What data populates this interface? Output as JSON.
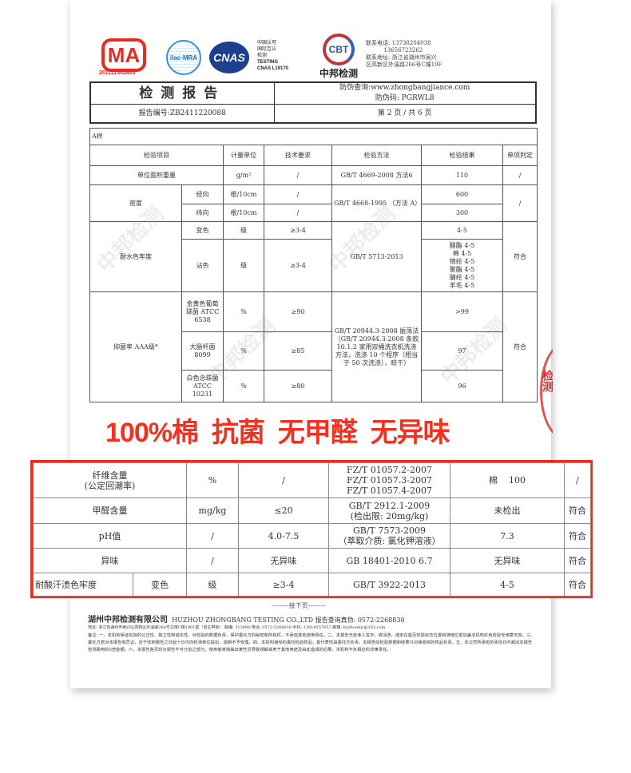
{
  "logos": {
    "cma_text": "MA",
    "cma_no": "201111342803",
    "ilac": "ilac-MRA",
    "cnas": "CNAS",
    "cnas_lines": [
      "中国认可",
      "国际互认",
      "检测",
      "TESTING",
      "CNAS L19170"
    ],
    "cbt": "CBT",
    "cbt_name": "中邦检测"
  },
  "contact": "联系电话: 13738204038\n          13656723262\n联系地址: 浙江省湖州市吴兴\n区高新区外溪路266号C幢19F",
  "header": {
    "title": "检测报告",
    "query": "防伪查询:www.zhongbangjiance.com",
    "code": "防伪码: PGRWL8",
    "report_no": "报告编号:ZB2411220088",
    "page": "第 2 页 / 共 6 页"
  },
  "table": {
    "sample": "A样",
    "columns": [
      "检验项目",
      "计量单位",
      "技术要求",
      "检验方法",
      "检验结果",
      "单项判定"
    ],
    "rows": {
      "weight": {
        "item": "单位面积重量",
        "unit": "g/m²",
        "req": "/",
        "method": "GB/T 4669-2008 方法6",
        "result": "110",
        "verdict": "/"
      },
      "density": {
        "item": "密度",
        "sub1": "经向",
        "sub2": "纬向",
        "unit": "根/10cm",
        "req": "/",
        "method": "GB/T 4668-1995 （方法 A）",
        "r1": "600",
        "r2": "300",
        "verdict": "/"
      },
      "water": {
        "item": "耐水色牢度",
        "sub1": "变色",
        "sub2": "沾色",
        "unit": "级",
        "req": "≥3-4",
        "method": "GB/T 5713-2013",
        "r1": "4-5",
        "r2": [
          "醋酯 4-5",
          "棉 4-5",
          "锦纶 4-5",
          "聚酯 4-5",
          "腈纶 4-5",
          "羊毛 4-5"
        ],
        "verdict": "符合"
      },
      "antibac": {
        "item": "抑菌率 AAA级*",
        "b1": "金黄色葡萄球菌 ATCC 6538",
        "b2": "大肠杆菌 8099",
        "b3": "白色念珠菌 ATCC 10231",
        "unit": "%",
        "q1": "≥90",
        "q2": "≥85",
        "q3": "≥80",
        "method": "GB/T 20944.3-2008 振荡法（GB/T 20944.3-2008 条款 10.1.2 家用双桶洗衣机洗涤方法，洗涤 10 个程序（相当于 50 次洗涤），晾干）",
        "r1": ">99",
        "r2": "97",
        "r3": "96",
        "verdict": "符合"
      }
    }
  },
  "promo": "100%棉  抗菌  无甲醛  无异味",
  "stamp": "检测",
  "highlight": [
    {
      "item": "纤维含量\n(公定回潮率)",
      "unit": "%",
      "req": "/",
      "method": "FZ/T 01057.2-2007\nFZ/T 01057.3-2007\nFZ/T 01057.4-2007",
      "result": "棉    100",
      "verdict": "/"
    },
    {
      "item": "甲醛含量",
      "unit": "mg/kg",
      "req": "≤20",
      "method": "GB/T 2912.1-2009\n(检出限: 20mg/kg)",
      "result": "未检出",
      "verdict": "符合"
    },
    {
      "item": "pH值",
      "unit": "/",
      "req": "4.0-7.5",
      "method": "GB/T 7573-2009\n（萃取介质: 氯化钾溶液）",
      "result": "7.3",
      "verdict": "符合"
    },
    {
      "item": "异味",
      "unit": "/",
      "req": "无异味",
      "method": "GB 18401-2010 6.7",
      "result": "无异味",
      "verdict": "符合"
    },
    {
      "item": "耐酸汗渍色牢度",
      "sub": "变色",
      "unit": "级",
      "req": "≥3-4",
      "method": "GB/T 3922-2013",
      "result": "4-5",
      "verdict": "符合"
    }
  ],
  "footer": {
    "next": "--------接下页--------",
    "company": "湖州中邦检测有限公司",
    "company_en": "HUZHOU ZHONGBANG TESTING CO.,LTD 报告查询真伪: 0572-2268830",
    "address": "地址: 浙江省湖州市吴兴区高新区外溪路266号主楼C幢1901室（自主申报）,邮编: 313000,电话: 0572-2268830,手机: 13819257657,邮箱: huzhoubjc@163.com",
    "notes": "备注: 一、本机构保证检验的公正性、独立性和诚实性，对检验的数据负责，保护委托方的秘密和所有权，不承担其他连带责任。二、本报告无批准人签字，或涂改，或未在首页检验标志位置和骑缝位置加盖本机构红色检验专用章无效。三、委托方若对本报告有异议，应于收到报告之日起十日内向检测单位提出，逾期不予受理。四、本机构接受的委托检验样品，其代表性由委托方负责。本报告的检验数据和结果只对接收到的样品负责。五、本公司所承担的责任均不超出本报告检测费用的5倍金额。六、本报告各页均为报告不可分割之部分，使用者单独抽出某些页导致误解或用于其他用途及由此造成的后果，本机构不负相应的法律责任。"
  }
}
